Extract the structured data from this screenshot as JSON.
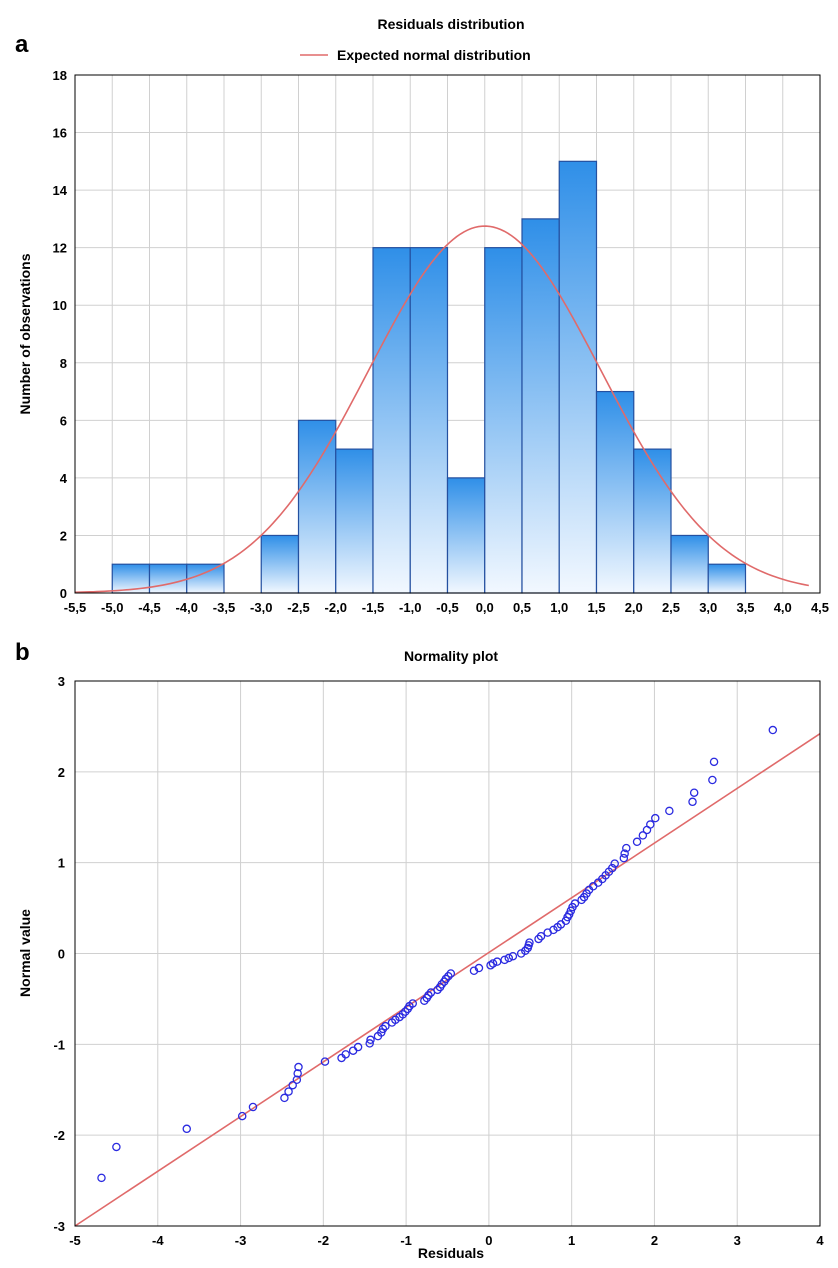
{
  "colors": {
    "bar_top": "#2f8fe8",
    "bar_bottom": "#f2f8ff",
    "bar_stroke": "#2450a0",
    "normal_curve": "#e06a6a",
    "point_stroke": "#2a2ae0",
    "grid": "#d0d0d0",
    "plot_bg": "#ffffff"
  },
  "chart_data": [
    {
      "panel_label": "a",
      "type": "bar",
      "title": "Residuals distribution",
      "legend": {
        "entries": [
          "Expected normal distribution"
        ],
        "placement": "top-center"
      },
      "xlabel": "",
      "ylabel": "Number of observations",
      "xlim": [
        -5.5,
        4.5
      ],
      "ylim": [
        0,
        18
      ],
      "xtick_values": [
        -5.5,
        -5.0,
        -4.5,
        -4.0,
        -3.5,
        -3.0,
        -2.5,
        -2.0,
        -1.5,
        -1.0,
        -0.5,
        0.0,
        0.5,
        1.0,
        1.5,
        2.0,
        2.5,
        3.0,
        3.5,
        4.0,
        4.5
      ],
      "xtick_labels": [
        "-5,5",
        "-5,0",
        "-4,5",
        "-4,0",
        "-3,5",
        "-3,0",
        "-2,5",
        "-2,0",
        "-1,5",
        "-1,0",
        "-0,5",
        "0,0",
        "0,5",
        "1,0",
        "1,5",
        "2,0",
        "2,5",
        "3,0",
        "3,5",
        "4,0",
        "4,5"
      ],
      "ytick_labels": [
        "0",
        "2",
        "4",
        "6",
        "8",
        "10",
        "12",
        "14",
        "16",
        "18"
      ],
      "grid": true,
      "bins": [
        {
          "from": -5.0,
          "to": -4.5,
          "value": 1
        },
        {
          "from": -4.5,
          "to": -4.0,
          "value": 1
        },
        {
          "from": -4.0,
          "to": -3.5,
          "value": 1
        },
        {
          "from": -3.5,
          "to": -3.0,
          "value": 0
        },
        {
          "from": -3.0,
          "to": -2.5,
          "value": 2
        },
        {
          "from": -2.5,
          "to": -2.0,
          "value": 6
        },
        {
          "from": -2.0,
          "to": -1.5,
          "value": 5
        },
        {
          "from": -1.5,
          "to": -1.0,
          "value": 12
        },
        {
          "from": -1.0,
          "to": -0.5,
          "value": 12
        },
        {
          "from": -0.5,
          "to": 0.0,
          "value": 4
        },
        {
          "from": 0.0,
          "to": 0.5,
          "value": 12
        },
        {
          "from": 0.5,
          "to": 1.0,
          "value": 13
        },
        {
          "from": 1.0,
          "to": 1.5,
          "value": 15
        },
        {
          "from": 1.5,
          "to": 2.0,
          "value": 7
        },
        {
          "from": 2.0,
          "to": 2.5,
          "value": 5
        },
        {
          "from": 2.5,
          "to": 3.0,
          "value": 2
        },
        {
          "from": 3.0,
          "to": 3.5,
          "value": 1
        }
      ],
      "curve": {
        "name": "Expected normal distribution",
        "mean": 0.0,
        "sd": 1.56,
        "peak": 12.75,
        "x_range": [
          -5.5,
          4.35
        ]
      }
    },
    {
      "panel_label": "b",
      "type": "scatter",
      "title": "Normality plot",
      "xlabel": "Residuals",
      "ylabel": "Normal value",
      "xlim": [
        -5,
        4
      ],
      "ylim": [
        -3,
        3
      ],
      "xtick_labels": [
        "-5",
        "-4",
        "-3",
        "-2",
        "-1",
        "0",
        "1",
        "2",
        "3",
        "4"
      ],
      "ytick_labels": [
        "-3",
        "-2",
        "-1",
        "0",
        "1",
        "2",
        "3"
      ],
      "grid": true,
      "reference_line": {
        "x": [
          -5,
          4
        ],
        "y": [
          -3.0,
          2.42
        ]
      },
      "points": [
        [
          -4.68,
          -2.47
        ],
        [
          -4.5,
          -2.13
        ],
        [
          -3.65,
          -1.93
        ],
        [
          -2.98,
          -1.79
        ],
        [
          -2.85,
          -1.69
        ],
        [
          -2.47,
          -1.59
        ],
        [
          -2.42,
          -1.52
        ],
        [
          -2.37,
          -1.45
        ],
        [
          -2.32,
          -1.39
        ],
        [
          -2.31,
          -1.32
        ],
        [
          -2.3,
          -1.25
        ],
        [
          -1.98,
          -1.19
        ],
        [
          -1.78,
          -1.15
        ],
        [
          -1.73,
          -1.11
        ],
        [
          -1.64,
          -1.07
        ],
        [
          -1.58,
          -1.03
        ],
        [
          -1.44,
          -0.99
        ],
        [
          -1.43,
          -0.95
        ],
        [
          -1.34,
          -0.91
        ],
        [
          -1.3,
          -0.87
        ],
        [
          -1.28,
          -0.83
        ],
        [
          -1.25,
          -0.8
        ],
        [
          -1.17,
          -0.76
        ],
        [
          -1.13,
          -0.73
        ],
        [
          -1.08,
          -0.7
        ],
        [
          -1.04,
          -0.67
        ],
        [
          -1.01,
          -0.64
        ],
        [
          -0.98,
          -0.61
        ],
        [
          -0.96,
          -0.58
        ],
        [
          -0.92,
          -0.55
        ],
        [
          -0.78,
          -0.52
        ],
        [
          -0.75,
          -0.49
        ],
        [
          -0.73,
          -0.46
        ],
        [
          -0.7,
          -0.43
        ],
        [
          -0.62,
          -0.4
        ],
        [
          -0.59,
          -0.37
        ],
        [
          -0.57,
          -0.34
        ],
        [
          -0.54,
          -0.31
        ],
        [
          -0.52,
          -0.28
        ],
        [
          -0.49,
          -0.25
        ],
        [
          -0.46,
          -0.22
        ],
        [
          -0.18,
          -0.19
        ],
        [
          -0.12,
          -0.16
        ],
        [
          0.02,
          -0.13
        ],
        [
          0.05,
          -0.11
        ],
        [
          0.1,
          -0.09
        ],
        [
          0.19,
          -0.07
        ],
        [
          0.24,
          -0.05
        ],
        [
          0.29,
          -0.03
        ],
        [
          0.39,
          0.0
        ],
        [
          0.44,
          0.03
        ],
        [
          0.47,
          0.06
        ],
        [
          0.48,
          0.09
        ],
        [
          0.49,
          0.12
        ],
        [
          0.6,
          0.16
        ],
        [
          0.63,
          0.19
        ],
        [
          0.71,
          0.23
        ],
        [
          0.78,
          0.26
        ],
        [
          0.83,
          0.29
        ],
        [
          0.87,
          0.32
        ],
        [
          0.93,
          0.36
        ],
        [
          0.95,
          0.4
        ],
        [
          0.97,
          0.43
        ],
        [
          0.99,
          0.47
        ],
        [
          1.01,
          0.51
        ],
        [
          1.04,
          0.55
        ],
        [
          1.12,
          0.59
        ],
        [
          1.15,
          0.62
        ],
        [
          1.18,
          0.66
        ],
        [
          1.21,
          0.7
        ],
        [
          1.26,
          0.74
        ],
        [
          1.32,
          0.78
        ],
        [
          1.37,
          0.82
        ],
        [
          1.41,
          0.86
        ],
        [
          1.45,
          0.9
        ],
        [
          1.49,
          0.94
        ],
        [
          1.52,
          0.99
        ],
        [
          1.63,
          1.05
        ],
        [
          1.64,
          1.1
        ],
        [
          1.66,
          1.16
        ],
        [
          1.79,
          1.23
        ],
        [
          1.86,
          1.3
        ],
        [
          1.91,
          1.36
        ],
        [
          1.95,
          1.42
        ],
        [
          2.01,
          1.49
        ],
        [
          2.18,
          1.57
        ],
        [
          2.46,
          1.67
        ],
        [
          2.48,
          1.77
        ],
        [
          2.7,
          1.91
        ],
        [
          2.72,
          2.11
        ],
        [
          3.43,
          2.46
        ]
      ]
    }
  ]
}
